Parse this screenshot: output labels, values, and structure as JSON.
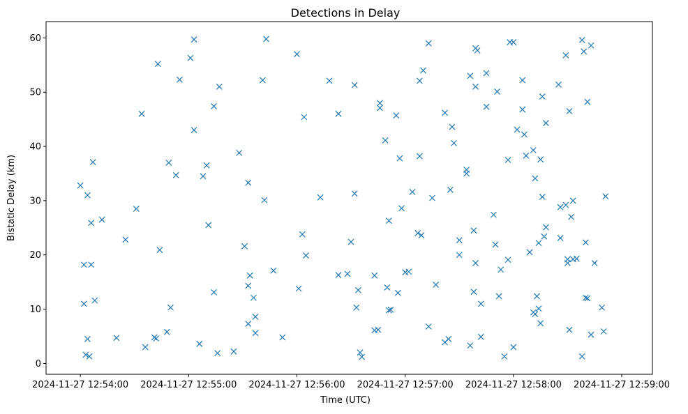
{
  "chart_data": {
    "type": "scatter",
    "title": "Detections in Delay",
    "xlabel": "Time (UTC)",
    "ylabel": "Bistatic Delay (km)",
    "x_unit": "seconds after 2024-11-27 12:54:00 UTC",
    "xlim": [
      -19,
      317
    ],
    "ylim": [
      -2,
      63
    ],
    "x_ticks": [
      {
        "value": 0,
        "label": "2024-11-27 12:54:00"
      },
      {
        "value": 60,
        "label": "2024-11-27 12:55:00"
      },
      {
        "value": 120,
        "label": "2024-11-27 12:56:00"
      },
      {
        "value": 180,
        "label": "2024-11-27 12:57:00"
      },
      {
        "value": 240,
        "label": "2024-11-27 12:58:00"
      },
      {
        "value": 300,
        "label": "2024-11-27 12:59:00"
      }
    ],
    "y_ticks": [
      {
        "value": 0,
        "label": "0"
      },
      {
        "value": 10,
        "label": "10"
      },
      {
        "value": 20,
        "label": "20"
      },
      {
        "value": 30,
        "label": "30"
      },
      {
        "value": 40,
        "label": "40"
      },
      {
        "value": 50,
        "label": "50"
      },
      {
        "value": 60,
        "label": "60"
      }
    ],
    "marker": "x",
    "color": "#1f77b4",
    "grid": false,
    "legend": "none",
    "points": [
      [
        0,
        32.8
      ],
      [
        2,
        18.2
      ],
      [
        2,
        11
      ],
      [
        4,
        31
      ],
      [
        4,
        4.5
      ],
      [
        3,
        1.6
      ],
      [
        5,
        1.3
      ],
      [
        6,
        25.9
      ],
      [
        6,
        18.2
      ],
      [
        7,
        37.1
      ],
      [
        8,
        11.6
      ],
      [
        12,
        26.5
      ],
      [
        20,
        4.7
      ],
      [
        25,
        22.8
      ],
      [
        31,
        28.5
      ],
      [
        34,
        46
      ],
      [
        36,
        3
      ],
      [
        41,
        4.8
      ],
      [
        42,
        4.6
      ],
      [
        43,
        55.2
      ],
      [
        44,
        20.9
      ],
      [
        48,
        5.8
      ],
      [
        49,
        37
      ],
      [
        50,
        10.3
      ],
      [
        53,
        34.7
      ],
      [
        55,
        52.3
      ],
      [
        61,
        56.3
      ],
      [
        63,
        59.7
      ],
      [
        63,
        43
      ],
      [
        66,
        3.6
      ],
      [
        68,
        34.5
      ],
      [
        70,
        36.5
      ],
      [
        71,
        25.5
      ],
      [
        74,
        13.1
      ],
      [
        74,
        47.4
      ],
      [
        76,
        1.9
      ],
      [
        77,
        51
      ],
      [
        85,
        2.2
      ],
      [
        88,
        38.8
      ],
      [
        91,
        21.6
      ],
      [
        93,
        33.3
      ],
      [
        93,
        14.3
      ],
      [
        93,
        7.3
      ],
      [
        94,
        16.2
      ],
      [
        96,
        12.1
      ],
      [
        97,
        5.6
      ],
      [
        97,
        8.6
      ],
      [
        101,
        52.2
      ],
      [
        102,
        30.1
      ],
      [
        103,
        59.8
      ],
      [
        107,
        17.1
      ],
      [
        112,
        4.8
      ],
      [
        120,
        57
      ],
      [
        121,
        13.8
      ],
      [
        123,
        23.8
      ],
      [
        124,
        45.4
      ],
      [
        125,
        19.9
      ],
      [
        133,
        30.6
      ],
      [
        138,
        52.1
      ],
      [
        143,
        16.3
      ],
      [
        143,
        46
      ],
      [
        148,
        16.5
      ],
      [
        150,
        22.4
      ],
      [
        152,
        31.3
      ],
      [
        152,
        51.3
      ],
      [
        153,
        10.3
      ],
      [
        154,
        13.5
      ],
      [
        155,
        2
      ],
      [
        156,
        1.2
      ],
      [
        163,
        16.2
      ],
      [
        163,
        6.1
      ],
      [
        165,
        6.2
      ],
      [
        166,
        48
      ],
      [
        166,
        47.1
      ],
      [
        169,
        41.1
      ],
      [
        170,
        14
      ],
      [
        171,
        26.3
      ],
      [
        171,
        9.8
      ],
      [
        172,
        9.9
      ],
      [
        175,
        45.7
      ],
      [
        176,
        13
      ],
      [
        177,
        37.8
      ],
      [
        178,
        28.6
      ],
      [
        180,
        16.8
      ],
      [
        182,
        16.9
      ],
      [
        184,
        31.6
      ],
      [
        187,
        24
      ],
      [
        188,
        38.2
      ],
      [
        188,
        52.1
      ],
      [
        189,
        23.6
      ],
      [
        190,
        54
      ],
      [
        193,
        59
      ],
      [
        193,
        6.8
      ],
      [
        195,
        30.5
      ],
      [
        197,
        14.5
      ],
      [
        202,
        3.9
      ],
      [
        202,
        46.2
      ],
      [
        204,
        4.5
      ],
      [
        205,
        32
      ],
      [
        206,
        43.6
      ],
      [
        207,
        40.6
      ],
      [
        210,
        22.7
      ],
      [
        210,
        20
      ],
      [
        214,
        35.7
      ],
      [
        214,
        35
      ],
      [
        216,
        53
      ],
      [
        216,
        3.3
      ],
      [
        218,
        13.2
      ],
      [
        218,
        24.5
      ],
      [
        219,
        58.1
      ],
      [
        219,
        18.5
      ],
      [
        219,
        51
      ],
      [
        220,
        57.7
      ],
      [
        222,
        11
      ],
      [
        222,
        4.9
      ],
      [
        225,
        53.5
      ],
      [
        225,
        47.3
      ],
      [
        229,
        27.4
      ],
      [
        230,
        21.9
      ],
      [
        231,
        50.1
      ],
      [
        232,
        12.4
      ],
      [
        233,
        17.3
      ],
      [
        235,
        1.3
      ],
      [
        237,
        37.5
      ],
      [
        237,
        19.1
      ],
      [
        238,
        59.2
      ],
      [
        240,
        59.2
      ],
      [
        240,
        3
      ],
      [
        242,
        43.1
      ],
      [
        245,
        46.8
      ],
      [
        245,
        52.2
      ],
      [
        246,
        42.2
      ],
      [
        247,
        38.3
      ],
      [
        249,
        20.5
      ],
      [
        251,
        39.3
      ],
      [
        251,
        9.4
      ],
      [
        252,
        9.1
      ],
      [
        252,
        34.1
      ],
      [
        253,
        12.4
      ],
      [
        254,
        22.2
      ],
      [
        254,
        10.1
      ],
      [
        255,
        7.4
      ],
      [
        255,
        37.6
      ],
      [
        256,
        49.2
      ],
      [
        256,
        30.7
      ],
      [
        257,
        23.4
      ],
      [
        258,
        44.3
      ],
      [
        258,
        25.1
      ],
      [
        265,
        51.4
      ],
      [
        266,
        28.8
      ],
      [
        266,
        23.1
      ],
      [
        269,
        29.2
      ],
      [
        269,
        56.8
      ],
      [
        270,
        18.5
      ],
      [
        270,
        19.2
      ],
      [
        271,
        46.5
      ],
      [
        271,
        6.2
      ],
      [
        272,
        27
      ],
      [
        273,
        19.2
      ],
      [
        273,
        30
      ],
      [
        275,
        19.3
      ],
      [
        278,
        59.6
      ],
      [
        278,
        1.3
      ],
      [
        279,
        57.5
      ],
      [
        280,
        22.3
      ],
      [
        281,
        48.2
      ],
      [
        280,
        12.1
      ],
      [
        281,
        12
      ],
      [
        283,
        58.6
      ],
      [
        283,
        5.3
      ],
      [
        285,
        18.5
      ],
      [
        289,
        10.3
      ],
      [
        290,
        5.9
      ],
      [
        291,
        30.8
      ]
    ]
  }
}
